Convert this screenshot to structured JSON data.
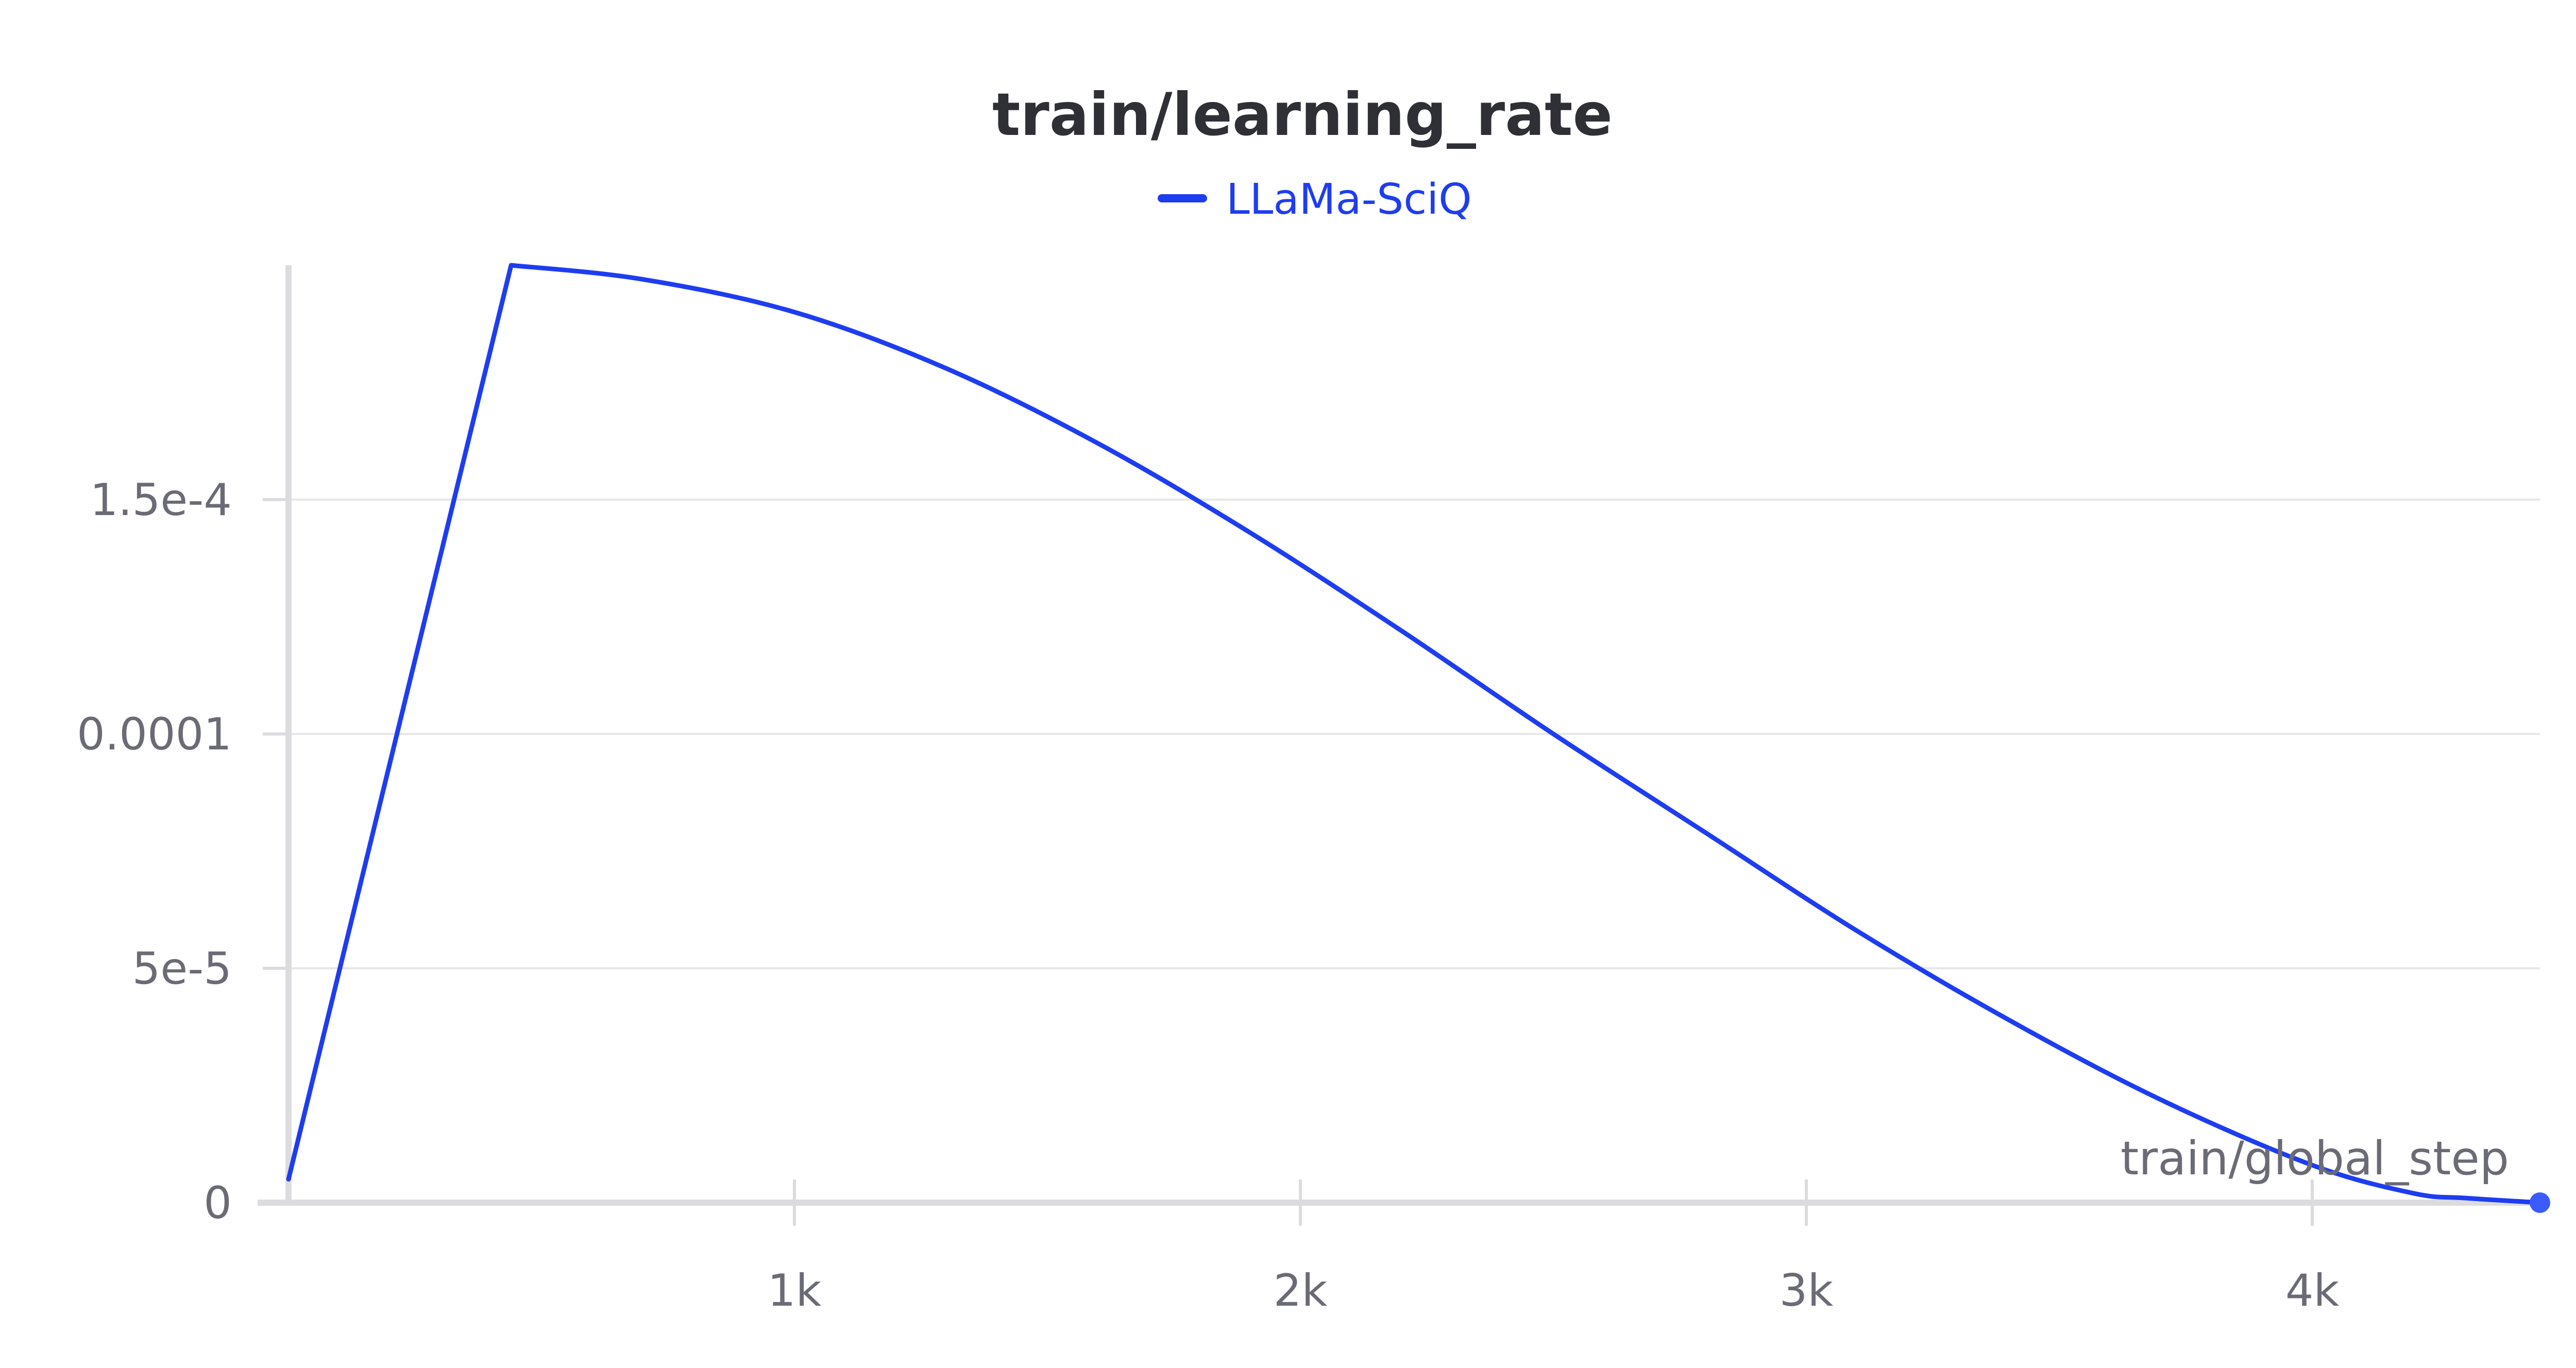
{
  "chart_data": {
    "type": "line",
    "title": "train/learning_rate",
    "xlabel": "train/global_step",
    "ylabel": "",
    "xlim": [
      0,
      4450
    ],
    "ylim": [
      0,
      0.0002
    ],
    "x_ticks": [
      {
        "value": 1000,
        "label": "1k"
      },
      {
        "value": 2000,
        "label": "2k"
      },
      {
        "value": 3000,
        "label": "3k"
      },
      {
        "value": 4000,
        "label": "4k"
      }
    ],
    "y_ticks": [
      {
        "value": 0,
        "label": "0"
      },
      {
        "value": 5e-05,
        "label": "5e-5"
      },
      {
        "value": 0.0001,
        "label": "0.0001"
      },
      {
        "value": 0.00015,
        "label": "1.5e-4"
      }
    ],
    "grid": true,
    "legend_position": "top-center",
    "series": [
      {
        "name": "LLaMa-SciQ",
        "color": "#1e3df0",
        "x": [
          0,
          440,
          700,
          1000,
          1300,
          1600,
          1900,
          2200,
          2500,
          2800,
          3100,
          3400,
          3700,
          4000,
          4200,
          4300,
          4450
        ],
        "y": [
          5e-06,
          0.0002,
          0.000197,
          0.00019,
          0.000178,
          0.000162,
          0.000143,
          0.000122,
          0.0001,
          7.9e-05,
          5.8e-05,
          3.9e-05,
          2.2e-05,
          8e-06,
          2e-06,
          1e-06,
          0.0
        ]
      }
    ]
  }
}
